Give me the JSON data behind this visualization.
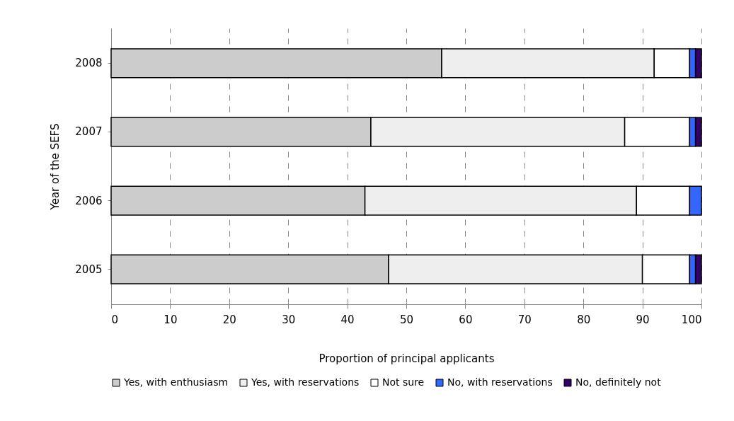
{
  "chart_data": {
    "type": "bar",
    "orientation": "horizontal",
    "stacked": true,
    "categories": [
      "2008",
      "2007",
      "2006",
      "2005"
    ],
    "series": [
      {
        "name": "Yes, with enthusiasm",
        "color": "#cccccc",
        "values": [
          56,
          44,
          43,
          47
        ]
      },
      {
        "name": "Yes, with reservations",
        "color": "#eeeeee",
        "values": [
          36,
          43,
          46,
          43
        ]
      },
      {
        "name": "Not sure",
        "color": "#ffffff",
        "values": [
          6,
          11,
          9,
          8
        ]
      },
      {
        "name": "No, with reservations",
        "color": "#3366ff",
        "values": [
          1,
          1,
          2,
          1
        ]
      },
      {
        "name": "No, definitely not",
        "color": "#330066",
        "values": [
          1,
          1,
          null,
          1
        ]
      }
    ],
    "xlim": [
      0,
      100
    ],
    "xticks": [
      0,
      10,
      20,
      30,
      40,
      50,
      60,
      70,
      80,
      90,
      100
    ],
    "xlabel": "Proportion of principal applicants",
    "ylabel": "Year of the SEFS",
    "grid": "x",
    "legend": "bottom"
  }
}
